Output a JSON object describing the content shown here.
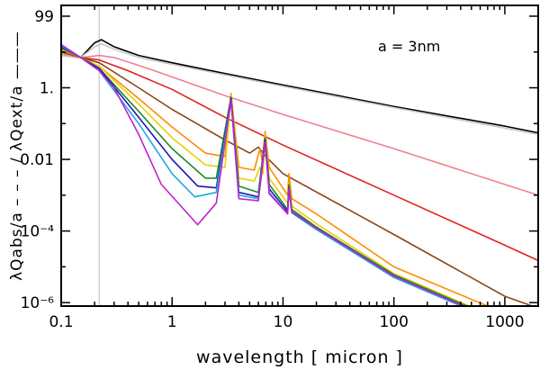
{
  "chart_data": {
    "type": "line",
    "title": "",
    "xlabel": "wavelength [ micron ]",
    "ylabel": "λQabs/a  – – –  /  λQext/a  ———",
    "x_scale": "log",
    "y_scale": "log",
    "xlim": [
      0.1,
      2000
    ],
    "ylim": [
      8e-07,
      200
    ],
    "x_ticks": [
      {
        "value": 0.1,
        "label": "0.1"
      },
      {
        "value": 1,
        "label": "1"
      },
      {
        "value": 10,
        "label": "10"
      },
      {
        "value": 100,
        "label": "100"
      },
      {
        "value": 1000,
        "label": "1000"
      }
    ],
    "y_ticks": [
      {
        "value": 99,
        "label": "99"
      },
      {
        "value": 1,
        "label": "1."
      },
      {
        "value": 0.01,
        "label": "0.01"
      },
      {
        "value": 0.0001,
        "label": "10⁻⁴"
      },
      {
        "value": 1e-06,
        "label": "10⁻⁶"
      }
    ],
    "annotation": "a  =  3nm",
    "vline_x": 0.22,
    "grid": false,
    "series": [
      {
        "color": "#000000",
        "values": [
          [
            0.1,
            8
          ],
          [
            0.15,
            7
          ],
          [
            0.2,
            18
          ],
          [
            0.23,
            22
          ],
          [
            0.3,
            14
          ],
          [
            0.5,
            8
          ],
          [
            1,
            5
          ],
          [
            3,
            2.5
          ],
          [
            10,
            1.2
          ],
          [
            100,
            0.3
          ],
          [
            1000,
            0.085
          ],
          [
            2000,
            0.055
          ]
        ]
      },
      {
        "color": "#c8c8c8",
        "values": [
          [
            0.1,
            8
          ],
          [
            0.15,
            7
          ],
          [
            0.2,
            14
          ],
          [
            0.23,
            17
          ],
          [
            0.3,
            12
          ],
          [
            0.5,
            7
          ],
          [
            1,
            4.5
          ],
          [
            3,
            2.3
          ],
          [
            10,
            1.1
          ],
          [
            100,
            0.28
          ],
          [
            1000,
            0.075
          ],
          [
            2000,
            0.05
          ]
        ]
      },
      {
        "color": "#f08090",
        "values": [
          [
            0.1,
            9
          ],
          [
            0.15,
            7
          ],
          [
            0.22,
            8
          ],
          [
            0.3,
            7
          ],
          [
            0.6,
            3.5
          ],
          [
            1,
            2
          ],
          [
            3,
            0.6
          ],
          [
            10,
            0.18
          ],
          [
            100,
            0.02
          ],
          [
            1000,
            0.002
          ],
          [
            2000,
            0.001
          ]
        ]
      },
      {
        "color": "#e32020",
        "values": [
          [
            0.1,
            10
          ],
          [
            0.15,
            7
          ],
          [
            0.22,
            6
          ],
          [
            0.4,
            3
          ],
          [
            1,
            0.9
          ],
          [
            3,
            0.15
          ],
          [
            10,
            0.025
          ],
          [
            100,
            0.001
          ],
          [
            1000,
            4e-05
          ],
          [
            2000,
            1.5e-05
          ]
        ]
      },
      {
        "color": "#8b4513",
        "values": [
          [
            0.1,
            11
          ],
          [
            0.15,
            7
          ],
          [
            0.22,
            5
          ],
          [
            0.5,
            1
          ],
          [
            1,
            0.25
          ],
          [
            3,
            0.035
          ],
          [
            5,
            0.015
          ],
          [
            6,
            0.022
          ],
          [
            7,
            0.012
          ],
          [
            10,
            0.004
          ],
          [
            100,
            8e-05
          ],
          [
            1000,
            1.5e-06
          ],
          [
            2000,
            7e-07
          ]
        ]
      },
      {
        "color": "#ff8c00",
        "values": [
          [
            0.1,
            12
          ],
          [
            0.15,
            7
          ],
          [
            0.22,
            4
          ],
          [
            0.5,
            0.5
          ],
          [
            1,
            0.08
          ],
          [
            2,
            0.015
          ],
          [
            3,
            0.012
          ],
          [
            3.4,
            0.7
          ],
          [
            4,
            0.006
          ],
          [
            5.5,
            0.005
          ],
          [
            6.2,
            0.02
          ],
          [
            6.5,
            0.009
          ],
          [
            6.9,
            0.06
          ],
          [
            7.5,
            0.006
          ],
          [
            11,
            0.001
          ],
          [
            11.3,
            0.004
          ],
          [
            12,
            0.0008
          ],
          [
            20,
            0.0003
          ],
          [
            100,
            1e-05
          ],
          [
            1000,
            5e-07
          ]
        ]
      },
      {
        "color": "#e8d000",
        "values": [
          [
            0.1,
            12
          ],
          [
            0.15,
            7
          ],
          [
            0.22,
            4
          ],
          [
            0.5,
            0.35
          ],
          [
            1,
            0.04
          ],
          [
            2,
            0.007
          ],
          [
            3,
            0.006
          ],
          [
            3.4,
            0.6
          ],
          [
            4,
            0.003
          ],
          [
            5.5,
            0.0025
          ],
          [
            6.2,
            0.006
          ],
          [
            6.6,
            0.004
          ],
          [
            6.9,
            0.05
          ],
          [
            7.5,
            0.003
          ],
          [
            11,
            0.0006
          ],
          [
            11.3,
            0.0022
          ],
          [
            12,
            0.0005
          ],
          [
            20,
            0.00016
          ],
          [
            100,
            6.5e-06
          ],
          [
            1000,
            3e-07
          ]
        ]
      },
      {
        "color": "#228b22",
        "values": [
          [
            0.1,
            13
          ],
          [
            0.15,
            7
          ],
          [
            0.22,
            3.5
          ],
          [
            0.5,
            0.22
          ],
          [
            1,
            0.02
          ],
          [
            2,
            0.003
          ],
          [
            2.5,
            0.003
          ],
          [
            3.4,
            0.55
          ],
          [
            4,
            0.0018
          ],
          [
            6,
            0.0012
          ],
          [
            6.9,
            0.04
          ],
          [
            7.5,
            0.002
          ],
          [
            11,
            0.0004
          ],
          [
            11.3,
            0.002
          ],
          [
            12,
            0.0004
          ],
          [
            20,
            0.00013
          ],
          [
            100,
            6e-06
          ],
          [
            1000,
            2.8e-07
          ]
        ]
      },
      {
        "color": "#1a1ab0",
        "values": [
          [
            0.1,
            14
          ],
          [
            0.15,
            7
          ],
          [
            0.22,
            3.5
          ],
          [
            0.5,
            0.15
          ],
          [
            1,
            0.01
          ],
          [
            1.7,
            0.0018
          ],
          [
            2.5,
            0.0016
          ],
          [
            3.4,
            0.5
          ],
          [
            4,
            0.0012
          ],
          [
            6,
            0.0009
          ],
          [
            6.9,
            0.035
          ],
          [
            7.5,
            0.0015
          ],
          [
            11,
            0.00035
          ],
          [
            11.3,
            0.0016
          ],
          [
            12,
            0.00035
          ],
          [
            20,
            0.00012
          ],
          [
            100,
            5.5e-06
          ],
          [
            1000,
            2.6e-07
          ]
        ]
      },
      {
        "color": "#1fa8e0",
        "values": [
          [
            0.1,
            15
          ],
          [
            0.15,
            7
          ],
          [
            0.22,
            3
          ],
          [
            0.5,
            0.1
          ],
          [
            1,
            0.004
          ],
          [
            1.6,
            0.0009
          ],
          [
            2.5,
            0.0012
          ],
          [
            3.4,
            0.45
          ],
          [
            4,
            0.001
          ],
          [
            6,
            0.0008
          ],
          [
            6.9,
            0.03
          ],
          [
            7.5,
            0.0012
          ],
          [
            11,
            0.0003
          ],
          [
            11.3,
            0.0015
          ],
          [
            12,
            0.00032
          ],
          [
            20,
            0.00011
          ],
          [
            100,
            5e-06
          ],
          [
            1000,
            2.4e-07
          ]
        ]
      },
      {
        "color": "#c020d0",
        "values": [
          [
            0.1,
            16
          ],
          [
            0.15,
            7
          ],
          [
            0.22,
            3
          ],
          [
            0.3,
            1
          ],
          [
            0.5,
            0.05
          ],
          [
            0.8,
            0.002
          ],
          [
            1.7,
            0.00015
          ],
          [
            2.5,
            0.0006
          ],
          [
            3.4,
            0.45
          ],
          [
            4,
            0.0008
          ],
          [
            6,
            0.0007
          ],
          [
            6.9,
            0.03
          ],
          [
            7.5,
            0.0011
          ],
          [
            11,
            0.0003
          ],
          [
            11.3,
            0.0015
          ],
          [
            12,
            0.00034
          ],
          [
            20,
            0.00012
          ],
          [
            100,
            5.5e-06
          ],
          [
            1000,
            2.6e-07
          ]
        ]
      }
    ]
  }
}
